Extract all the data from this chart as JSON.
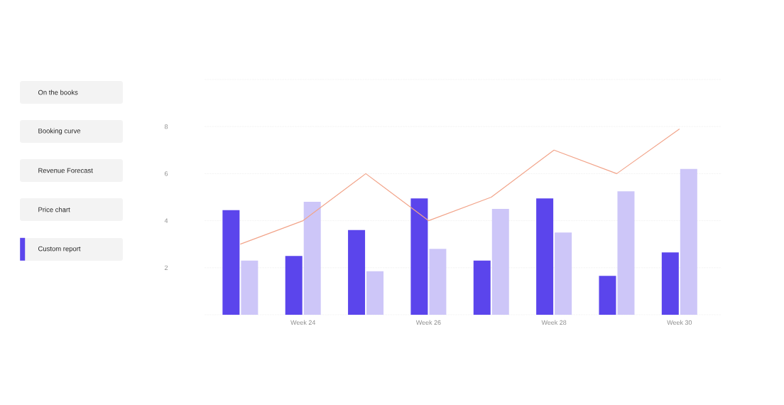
{
  "chart_data": {
    "type": "bar",
    "categories": [
      null,
      "Week 24",
      null,
      "Week 26",
      null,
      "Week 28",
      null,
      "Week 30"
    ],
    "series": [
      {
        "color": "#5b45ec",
        "values": [
          4.45,
          2.5,
          3.6,
          4.95,
          2.3,
          4.95,
          1.65,
          2.65
        ]
      },
      {
        "color": "#cdc6f8",
        "values": [
          2.3,
          4.8,
          1.85,
          2.8,
          4.5,
          3.5,
          5.25,
          6.2
        ]
      },
      {
        "type": "line",
        "color": "#f2a48a",
        "values": [
          3.0,
          4.0,
          6.0,
          4.0,
          5.0,
          7.0,
          6.0,
          7.9
        ]
      }
    ],
    "ylim": [
      0,
      10
    ],
    "yticks": [
      {
        "value": 0,
        "label": null
      },
      2,
      4,
      6,
      8,
      {
        "value": 10,
        "label": null
      }
    ],
    "grid": "y",
    "annotations": [
      "On the books",
      "Booking curve",
      "Revenue Forecast",
      "Price chart",
      "Custom report"
    ]
  }
}
